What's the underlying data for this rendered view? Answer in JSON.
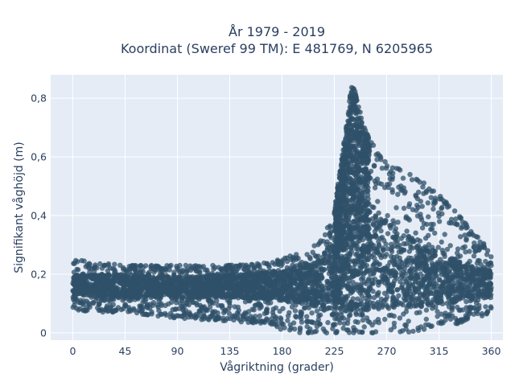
{
  "chart_data": {
    "type": "scatter",
    "title_lines": [
      "År 1979 - 2019",
      "Koordinat (Sweref 99 TM): E 481769, N 6205965"
    ],
    "xlabel": "Vågriktning (grader)",
    "ylabel": "Signifikant våghöjd (m)",
    "xlim": [
      -19,
      370
    ],
    "ylim": [
      -0.025,
      0.88
    ],
    "xticks": [
      0,
      45,
      90,
      135,
      180,
      225,
      270,
      315,
      360
    ],
    "yticks": [
      0,
      0.2,
      0.4,
      0.6,
      0.8
    ],
    "ytick_labels": [
      "0",
      "0,2",
      "0,4",
      "0,6",
      "0,8"
    ],
    "grid": true,
    "marker_color": "#2f5068",
    "plot_background": "#e5ecf6",
    "envelope": {
      "x": [
        0,
        20,
        45,
        90,
        135,
        170,
        185,
        200,
        215,
        225,
        230,
        235,
        238,
        240,
        243,
        248,
        255,
        262,
        270,
        285,
        300,
        315,
        330,
        345,
        355,
        360
      ],
      "y_max": [
        0.25,
        0.24,
        0.23,
        0.23,
        0.23,
        0.24,
        0.26,
        0.28,
        0.32,
        0.42,
        0.56,
        0.7,
        0.8,
        0.84,
        0.83,
        0.74,
        0.66,
        0.62,
        0.58,
        0.55,
        0.52,
        0.47,
        0.41,
        0.34,
        0.3,
        0.27
      ],
      "y_min": [
        0.08,
        0.07,
        0.07,
        0.05,
        0.04,
        0.03,
        0.0,
        0.0,
        0.0,
        0.0,
        0.0,
        0.0,
        0.0,
        0.0,
        0.0,
        0.0,
        0.0,
        0.0,
        0.0,
        0.0,
        0.01,
        0.02,
        0.03,
        0.05,
        0.06,
        0.08
      ]
    },
    "density_core": {
      "x": [
        0,
        45,
        90,
        135,
        180,
        210,
        230,
        245,
        270,
        300,
        330,
        360
      ],
      "y_low": [
        0.13,
        0.12,
        0.12,
        0.12,
        0.11,
        0.09,
        0.08,
        0.08,
        0.08,
        0.09,
        0.1,
        0.12
      ],
      "y_high": [
        0.2,
        0.2,
        0.19,
        0.2,
        0.21,
        0.24,
        0.34,
        0.5,
        0.38,
        0.3,
        0.25,
        0.21
      ]
    }
  }
}
